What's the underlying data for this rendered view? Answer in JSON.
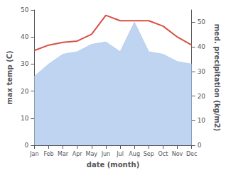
{
  "chart_data": {
    "type": "line",
    "categories": [
      "Jan",
      "Feb",
      "Mar",
      "Apr",
      "May",
      "Jun",
      "Jul",
      "Aug",
      "Sep",
      "Oct",
      "Nov",
      "Dec"
    ],
    "series": [
      {
        "type": "line",
        "color": "#d94f43",
        "values": [
          35,
          37,
          38,
          38.5,
          41,
          48,
          46,
          46,
          46,
          44,
          40,
          37
        ]
      },
      {
        "type": "area",
        "color": "#b8cff0",
        "axis": "y2",
        "values": [
          28,
          33,
          37,
          38,
          41,
          42,
          38,
          50,
          38,
          37,
          34,
          33
        ]
      }
    ],
    "xlabel": "date (month)",
    "ylabel": "max temp (C)",
    "y2label": "med. precipitation (kg/m2)",
    "ylim": [
      0,
      50
    ],
    "yticks": [
      0,
      10,
      20,
      30,
      40,
      50
    ],
    "y2lim": [
      0,
      55
    ],
    "y2ticks": [
      0,
      10,
      20,
      30,
      40,
      50
    ],
    "grid": false
  }
}
